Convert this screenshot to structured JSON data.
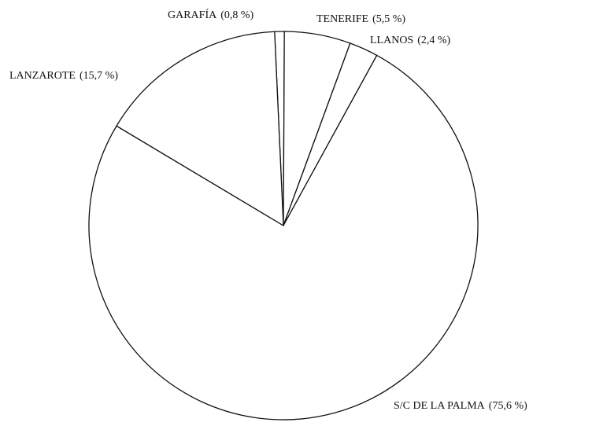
{
  "chart_data": {
    "type": "pie",
    "categories": [
      "GARAFÍA",
      "TENERIFE",
      "LLANOS",
      "S/C DE LA PALMA",
      "LANZAROTE"
    ],
    "values": [
      0.8,
      5.5,
      2.4,
      75.6,
      15.7
    ],
    "value_labels": [
      "(0,8 %)",
      "(5,5 %)",
      "(2,4 %)",
      "(75,6 %)",
      "(15,7 %)"
    ],
    "color": "#ffffff"
  }
}
